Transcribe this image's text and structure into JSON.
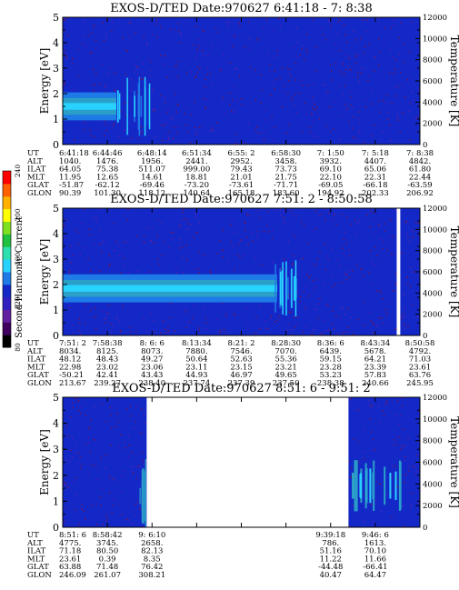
{
  "colorbar": {
    "label": "Second Harmonic Current",
    "ticks": [
      "80",
      "120",
      "160",
      "200",
      "240"
    ]
  },
  "colors": {
    "background": "#1428c8",
    "grain_red": "#8a1230",
    "grain_purple": "#6a1fa0",
    "band_cyan": "#28d2ff",
    "band_teal": "#2aa0c8",
    "band_mid": "#1e7ae6",
    "band_center": "#60f0ff",
    "gap": "#ffffff"
  },
  "chart_data": [
    {
      "type": "heatmap",
      "title": "EXOS-D/TED   Date:970627   6:41:18 - 7: 8:38",
      "ylabel": "Energy [eV]",
      "y2label": "Temperature [K]",
      "ylim": [
        0,
        5
      ],
      "y2lim": [
        0,
        12000
      ],
      "yticks": [
        "0",
        "1",
        "2",
        "3",
        "4",
        "5"
      ],
      "y2ticks": [
        "0",
        "2000",
        "4000",
        "6000",
        "8000",
        "10000",
        "12000"
      ],
      "gaps": [],
      "band": {
        "center_eV": 1.5,
        "visible_until_fraction": 0.15
      },
      "rows": {
        "UT": [
          "6:41:18",
          "6:44:46",
          "6:48:14",
          "6:51:34",
          "6:55: 2",
          "6:58:30",
          "7: 1:50",
          "7: 5:18",
          "7: 8:38"
        ],
        "ALT": [
          "1040.",
          "1476.",
          "1956.",
          "2441.",
          "2952.",
          "3458.",
          "3932.",
          "4407.",
          "4842."
        ],
        "ILAT": [
          "64.05",
          "75.38",
          "511.07",
          "999.00",
          "79.43",
          "73.73",
          "69.10",
          "65.06",
          "61.80"
        ],
        "MLT": [
          "11.95",
          "12.65",
          "14.61",
          "18.81",
          "21.01",
          "21.75",
          "22.10",
          "22.31",
          "22.44"
        ],
        "GLAT": [
          "-51.87",
          "-62.12",
          "-69.46",
          "-73.20",
          "-73.61",
          "-71.71",
          "-69.05",
          "-66.18",
          "-63.59"
        ],
        "GLON": [
          "90.39",
          "101.30",
          "118.12",
          "140.64",
          "165.18",
          "183.60",
          "194.92",
          "202.33",
          "206.92"
        ]
      }
    },
    {
      "type": "heatmap",
      "title": "EXOS-D/TED   Date:970627   7:51: 2 - 8:50:58",
      "ylabel": "Energy [eV]",
      "y2label": "Temperature [K]",
      "ylim": [
        0,
        5
      ],
      "y2lim": [
        0,
        12000
      ],
      "yticks": [
        "0",
        "1",
        "2",
        "3",
        "4",
        "5"
      ],
      "y2ticks": [
        "0",
        "2000",
        "4000",
        "6000",
        "8000",
        "10000",
        "12000"
      ],
      "gaps": [
        [
          0.935,
          0.945
        ]
      ],
      "band": {
        "center_eV": 1.85,
        "visible_until_fraction": 0.6
      },
      "rows": {
        "UT": [
          "7:51: 2",
          "7:58:38",
          "8: 6: 6",
          "8:13:34",
          "8:21: 2",
          "8:28:30",
          "8:36: 6",
          "8:43:34",
          "8:50:58"
        ],
        "ALT": [
          "8034.",
          "8125.",
          "8073.",
          "7880.",
          "7546.",
          "7070.",
          "6439.",
          "5678.",
          "4792."
        ],
        "ILAT": [
          "48.12",
          "48.43",
          "49.27",
          "50.64",
          "52.63",
          "55.36",
          "59.15",
          "64.21",
          "71.03"
        ],
        "MLT": [
          "22.98",
          "23.02",
          "23.06",
          "23.11",
          "23.15",
          "23.21",
          "23.28",
          "23.39",
          "23.61"
        ],
        "GLAT": [
          "-50.21",
          "42.41",
          "43.43",
          "44.93",
          "46.97",
          "49.65",
          "53.23",
          "57.83",
          "63.76"
        ],
        "GLON": [
          "213.67",
          "239.27",
          "238.40",
          "237.74",
          "237.39",
          "237.50",
          "238.38",
          "240.66",
          "245.95"
        ]
      }
    },
    {
      "type": "heatmap",
      "title": "EXOS-D/TED   Date:970627   8:51: 6 - 9:51: 2",
      "ylabel": "Energy [eV]",
      "y2label": "Temperature [K]",
      "ylim": [
        0,
        5
      ],
      "y2lim": [
        0,
        12000
      ],
      "yticks": [
        "0",
        "1",
        "2",
        "3",
        "4",
        "5"
      ],
      "y2ticks": [
        "0",
        "2000",
        "4000",
        "6000",
        "8000",
        "10000",
        "12000"
      ],
      "gaps": [
        [
          0.235,
          0.8
        ]
      ],
      "band": {
        "center_eV": 1.6,
        "visible_until_fraction": 0.0
      },
      "rows": {
        "UT": [
          "8:51: 6",
          "8:58:42",
          "9: 6:10",
          "",
          "",
          "",
          "9:39:18",
          "9:46: 6",
          ""
        ],
        "ALT": [
          "4775.",
          "3745.",
          "2658.",
          "",
          "",
          "",
          "786.",
          "1613.",
          ""
        ],
        "ILAT": [
          "71.18",
          "80.50",
          "82.13",
          "",
          "",
          "",
          "51.16",
          "70.10",
          ""
        ],
        "MLT": [
          "23.61",
          "0.39",
          "8.35",
          "",
          "",
          "",
          "11.22",
          "11.66",
          ""
        ],
        "GLAT": [
          "63.88",
          "71.48",
          "76.42",
          "",
          "",
          "",
          "-44.48",
          "-66.41",
          ""
        ],
        "GLON": [
          "246.09",
          "261.07",
          "308.21",
          "",
          "",
          "",
          "40.47",
          "64.47",
          ""
        ]
      }
    }
  ]
}
